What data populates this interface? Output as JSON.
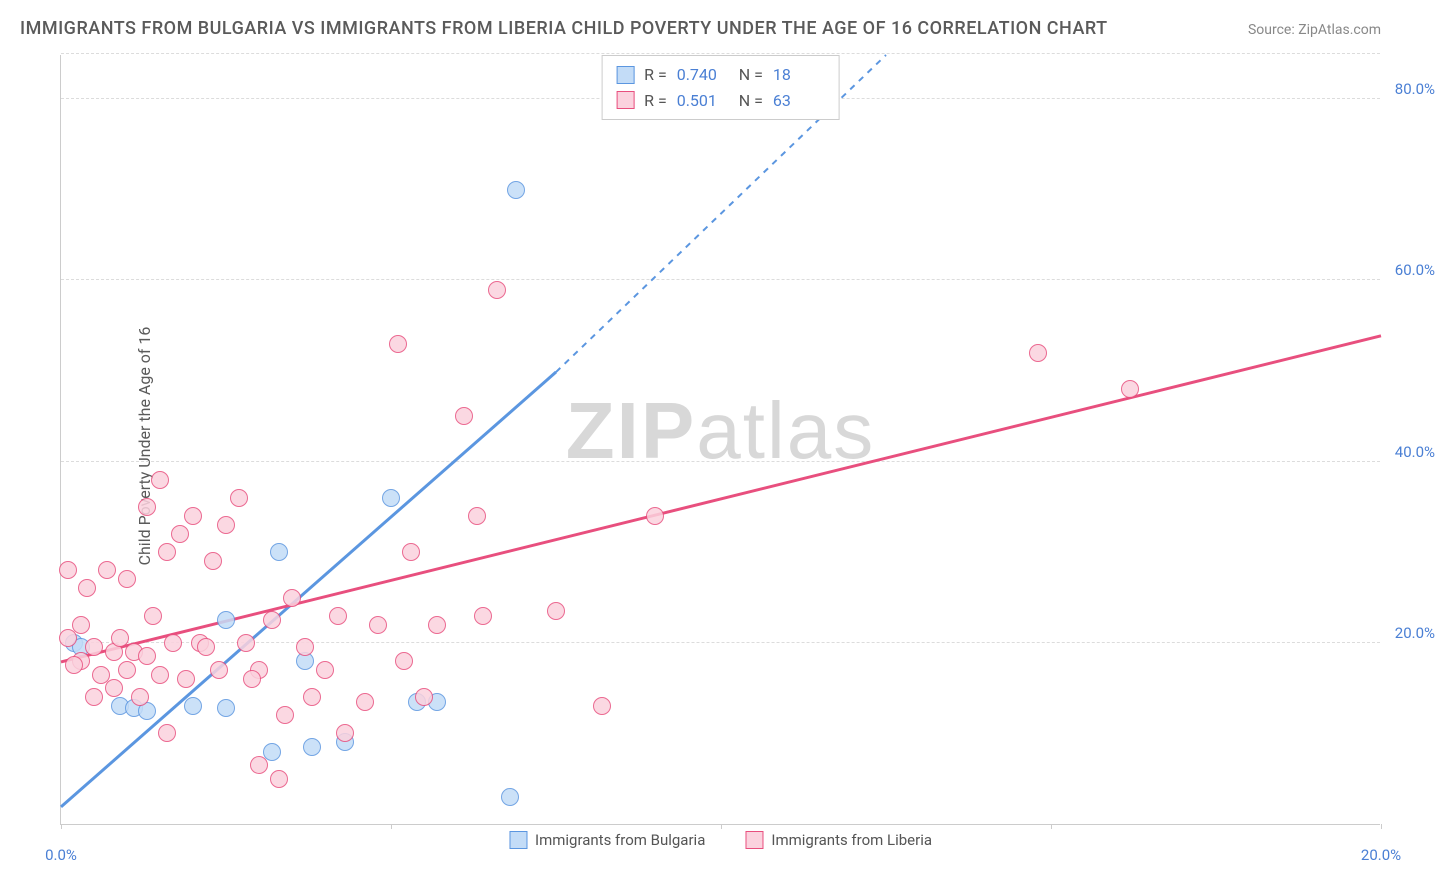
{
  "title": "IMMIGRANTS FROM BULGARIA VS IMMIGRANTS FROM LIBERIA CHILD POVERTY UNDER THE AGE OF 16 CORRELATION CHART",
  "source": "Source: ZipAtlas.com",
  "ylabel": "Child Poverty Under the Age of 16",
  "watermark_bold": "ZIP",
  "watermark_rest": "atlas",
  "chart": {
    "type": "scatter",
    "xlim": [
      0,
      20
    ],
    "ylim": [
      0,
      85
    ],
    "x_ticks": [
      0,
      5,
      10,
      15,
      20
    ],
    "x_tick_labels": [
      "0.0%",
      "",
      "",
      "",
      "20.0%"
    ],
    "y_ticks": [
      20,
      40,
      60,
      80
    ],
    "y_tick_labels": [
      "20.0%",
      "40.0%",
      "60.0%",
      "80.0%"
    ],
    "background_color": "#ffffff",
    "grid_color": "#dcdcdc",
    "axis_color": "#cccccc",
    "tick_label_color": "#4a7fd4",
    "text_color": "#5a5a5a",
    "marker_radius": 9,
    "marker_fill_opacity": 0.35,
    "series": [
      {
        "name": "Immigrants from Bulgaria",
        "color": "#5b96e0",
        "fill": "#c3dcf7",
        "stroke": "#5b96e0",
        "R": "0.740",
        "N": "18",
        "trend": {
          "x1": 0,
          "y1": 2,
          "x2": 7.5,
          "y2": 50,
          "dash_extend_x2": 12.5,
          "dash_extend_y2": 85
        },
        "points": [
          [
            0.2,
            20
          ],
          [
            0.3,
            19.5
          ],
          [
            0.9,
            13
          ],
          [
            1.1,
            12.8
          ],
          [
            1.3,
            12.5
          ],
          [
            2.0,
            13
          ],
          [
            2.5,
            12.8
          ],
          [
            2.5,
            22.5
          ],
          [
            3.3,
            30
          ],
          [
            3.2,
            8
          ],
          [
            3.7,
            18
          ],
          [
            3.8,
            8.5
          ],
          [
            4.3,
            9
          ],
          [
            5.0,
            36
          ],
          [
            5.4,
            13.5
          ],
          [
            5.7,
            13.5
          ],
          [
            6.9,
            70
          ],
          [
            6.8,
            3
          ]
        ]
      },
      {
        "name": "Immigrants from Liberia",
        "color": "#e84f7e",
        "fill": "#fbd2de",
        "stroke": "#e84f7e",
        "R": "0.501",
        "N": "63",
        "trend": {
          "x1": 0,
          "y1": 18,
          "x2": 20,
          "y2": 54
        },
        "points": [
          [
            0.1,
            20.5
          ],
          [
            0.1,
            28
          ],
          [
            0.3,
            18
          ],
          [
            0.4,
            26
          ],
          [
            0.5,
            19.5
          ],
          [
            0.6,
            16.5
          ],
          [
            0.7,
            28
          ],
          [
            0.8,
            19
          ],
          [
            0.8,
            15
          ],
          [
            1.0,
            17
          ],
          [
            1.0,
            27
          ],
          [
            1.1,
            19
          ],
          [
            1.2,
            14
          ],
          [
            1.3,
            35
          ],
          [
            1.4,
            23
          ],
          [
            1.5,
            16.5
          ],
          [
            1.5,
            38
          ],
          [
            1.6,
            30
          ],
          [
            1.7,
            20
          ],
          [
            1.8,
            32
          ],
          [
            1.9,
            16
          ],
          [
            2.0,
            34
          ],
          [
            2.1,
            20
          ],
          [
            2.2,
            19.5
          ],
          [
            2.4,
            17
          ],
          [
            2.5,
            33
          ],
          [
            2.7,
            36
          ],
          [
            2.8,
            20
          ],
          [
            3.0,
            17
          ],
          [
            3.0,
            6.5
          ],
          [
            3.2,
            22.5
          ],
          [
            3.3,
            5
          ],
          [
            3.5,
            25
          ],
          [
            3.7,
            19.5
          ],
          [
            3.8,
            14
          ],
          [
            4.0,
            17
          ],
          [
            4.2,
            23
          ],
          [
            4.3,
            10
          ],
          [
            4.6,
            13.5
          ],
          [
            5.1,
            53
          ],
          [
            5.2,
            18
          ],
          [
            5.5,
            14
          ],
          [
            5.7,
            22
          ],
          [
            6.1,
            45
          ],
          [
            6.3,
            34
          ],
          [
            6.4,
            23
          ],
          [
            6.6,
            59
          ],
          [
            7.5,
            23.5
          ],
          [
            8.2,
            13
          ],
          [
            9.0,
            34
          ],
          [
            14.8,
            52
          ],
          [
            16.2,
            48
          ],
          [
            0.2,
            17.5
          ],
          [
            0.3,
            22
          ],
          [
            0.5,
            14
          ],
          [
            0.9,
            20.5
          ],
          [
            1.3,
            18.5
          ],
          [
            1.6,
            10
          ],
          [
            2.3,
            29
          ],
          [
            2.9,
            16
          ],
          [
            3.4,
            12
          ],
          [
            4.8,
            22
          ],
          [
            5.3,
            30
          ]
        ]
      }
    ],
    "legend_labels": {
      "R_label": "R =",
      "N_label": "N ="
    }
  }
}
